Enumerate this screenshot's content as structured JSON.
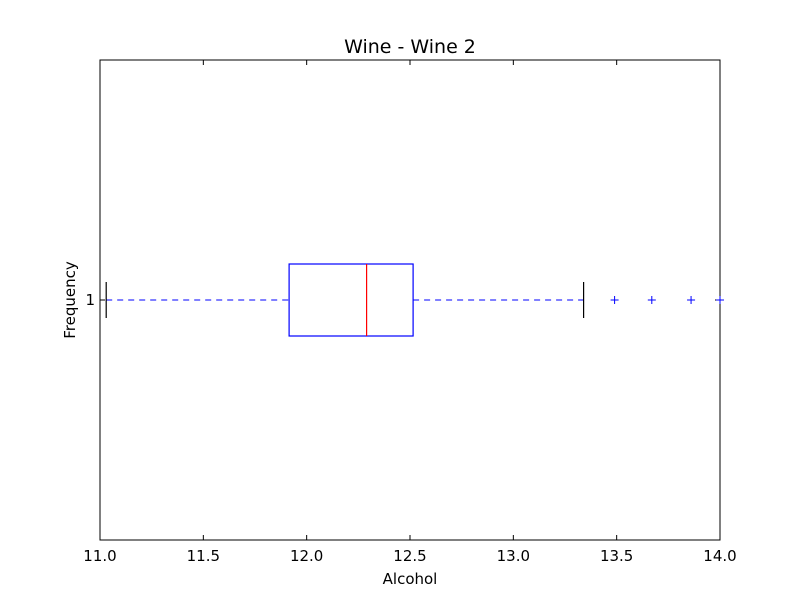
{
  "chart_data": {
    "type": "box",
    "orientation": "horizontal",
    "title": "Wine - Wine 2",
    "xlabel": "Alcohol",
    "ylabel": "Frequency",
    "xlim": [
      11.0,
      14.0
    ],
    "xticks": [
      "11.0",
      "11.5",
      "12.0",
      "12.5",
      "13.0",
      "13.5",
      "14.0"
    ],
    "yticks": [
      "1"
    ],
    "grid": false,
    "box": {
      "category": "1",
      "whisker_low": 11.03,
      "q1": 11.915,
      "median": 12.29,
      "q3": 12.515,
      "whisker_high": 13.34,
      "outliers": [
        13.49,
        13.67,
        13.86,
        14.0
      ]
    },
    "colors": {
      "box": "#0000ff",
      "median": "#ff0000",
      "whisker": "#0000ff",
      "cap": "#000000",
      "outlier": "#0000ff"
    }
  }
}
